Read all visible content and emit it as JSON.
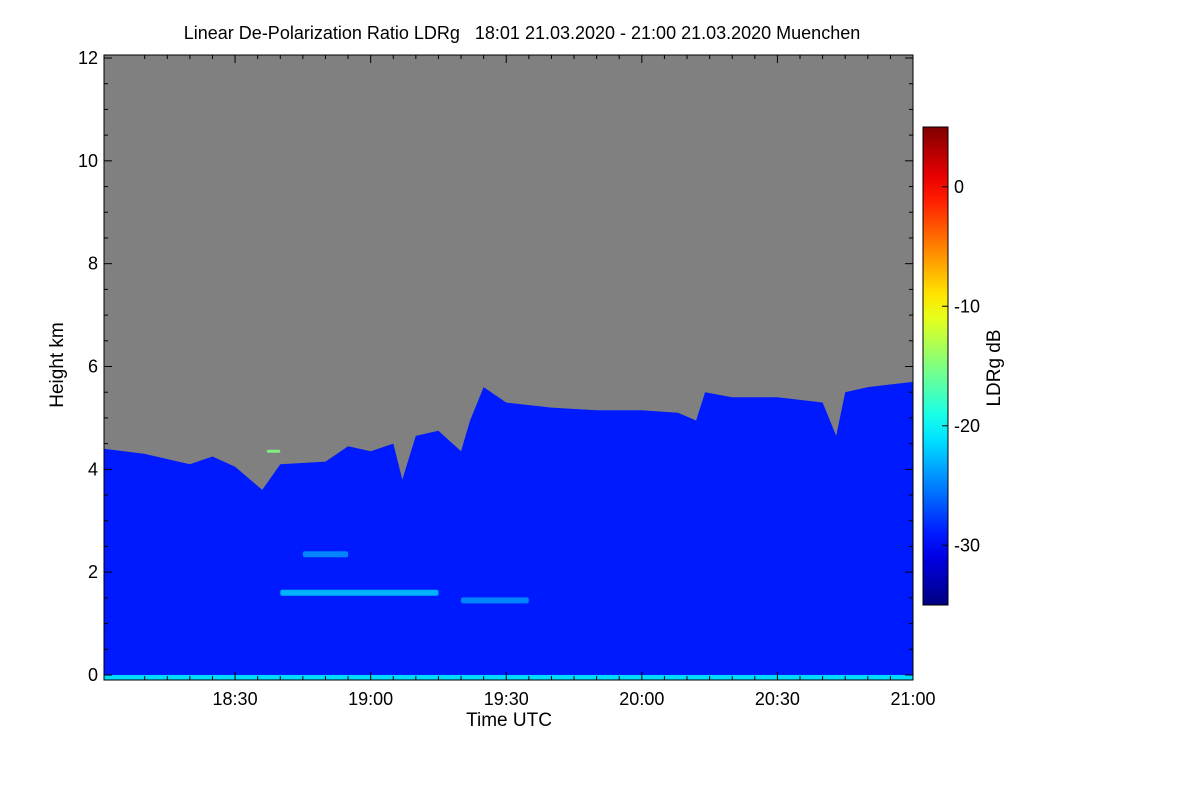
{
  "chart_data": {
    "type": "heatmap",
    "title": "Linear De-Polarization Ratio LDRg   18:01 21.03.2020 - 21:00 21.03.2020 Muenchen",
    "xlabel": "Time UTC",
    "ylabel": "Height km",
    "x_range": [
      "18:01",
      "21:00"
    ],
    "y_range": [
      0,
      12
    ],
    "x_ticks": [
      {
        "label": "18:30",
        "minutes": 1110
      },
      {
        "label": "19:00",
        "minutes": 1140
      },
      {
        "label": "19:30",
        "minutes": 1170
      },
      {
        "label": "20:00",
        "minutes": 1200
      },
      {
        "label": "20:30",
        "minutes": 1230
      },
      {
        "label": "21:00",
        "minutes": 1260
      }
    ],
    "y_ticks": [
      0,
      2,
      4,
      6,
      8,
      10,
      12
    ],
    "no_data_color": "#808080",
    "colorbar": {
      "label": "LDRg dB",
      "range": [
        -35,
        5
      ],
      "ticks": [
        {
          "label": "0",
          "value": 0
        },
        {
          "label": "-10",
          "value": -10
        },
        {
          "label": "-20",
          "value": -20
        },
        {
          "label": "-30",
          "value": -30
        }
      ],
      "colormap": "jet"
    },
    "signal_top_km": [
      {
        "time": "18:01",
        "height": 4.4
      },
      {
        "time": "18:10",
        "height": 4.3
      },
      {
        "time": "18:20",
        "height": 4.1
      },
      {
        "time": "18:25",
        "height": 4.25
      },
      {
        "time": "18:30",
        "height": 4.05
      },
      {
        "time": "18:36",
        "height": 3.6
      },
      {
        "time": "18:40",
        "height": 4.1
      },
      {
        "time": "18:50",
        "height": 4.15
      },
      {
        "time": "18:55",
        "height": 4.45
      },
      {
        "time": "19:00",
        "height": 4.35
      },
      {
        "time": "19:05",
        "height": 4.5
      },
      {
        "time": "19:07",
        "height": 3.8
      },
      {
        "time": "19:10",
        "height": 4.65
      },
      {
        "time": "19:15",
        "height": 4.75
      },
      {
        "time": "19:20",
        "height": 4.35
      },
      {
        "time": "19:22",
        "height": 4.95
      },
      {
        "time": "19:25",
        "height": 5.6
      },
      {
        "time": "19:30",
        "height": 5.3
      },
      {
        "time": "19:40",
        "height": 5.2
      },
      {
        "time": "19:50",
        "height": 5.15
      },
      {
        "time": "20:00",
        "height": 5.15
      },
      {
        "time": "20:08",
        "height": 5.1
      },
      {
        "time": "20:12",
        "height": 4.95
      },
      {
        "time": "20:14",
        "height": 5.5
      },
      {
        "time": "20:20",
        "height": 5.4
      },
      {
        "time": "20:30",
        "height": 5.4
      },
      {
        "time": "20:40",
        "height": 5.3
      },
      {
        "time": "20:43",
        "height": 4.65
      },
      {
        "time": "20:45",
        "height": 5.5
      },
      {
        "time": "20:50",
        "height": 5.6
      },
      {
        "time": "21:00",
        "height": 5.7
      }
    ],
    "features": [
      {
        "name": "enhanced layer",
        "time_start": "18:40",
        "time_end": "19:15",
        "height": 1.6,
        "ldr_db": -22
      },
      {
        "name": "enhanced layer",
        "time_start": "18:45",
        "time_end": "18:55",
        "height": 2.35,
        "ldr_db": -24
      },
      {
        "name": "enhanced layer",
        "time_start": "19:20",
        "time_end": "19:35",
        "height": 1.45,
        "ldr_db": -24
      },
      {
        "name": "near-ground layer",
        "time_start": "18:01",
        "time_end": "21:00",
        "height": 0.0,
        "ldr_db": -20
      },
      {
        "name": "speckle",
        "time_start": "18:37",
        "time_end": "18:40",
        "height": 4.35,
        "ldr_db": -15
      }
    ],
    "background_ldr_db": -29
  }
}
